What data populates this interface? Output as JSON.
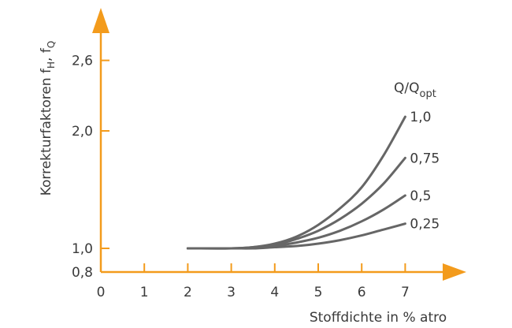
{
  "chart_data": {
    "type": "line",
    "title": "",
    "xlabel": "Stoffdichte in % atro",
    "ylabel": {
      "main": "Korrekturfaktoren f",
      "sub1": "H",
      "sep": ", f",
      "sub2": "Q"
    },
    "legend_title": {
      "main": "Q/Q",
      "sub": "opt"
    },
    "xlim": [
      0,
      7.4
    ],
    "ylim": [
      0.8,
      2.7
    ],
    "x_ticks": [
      "0",
      "1",
      "2",
      "3",
      "4",
      "5",
      "6",
      "7"
    ],
    "y_ticks": [
      {
        "value": 0.8,
        "label": "0,8"
      },
      {
        "value": 1.0,
        "label": "1,0"
      },
      {
        "value": 2.0,
        "label": "2,0"
      },
      {
        "value": 2.6,
        "label": "2,6"
      }
    ],
    "grid": false,
    "colors": {
      "axis": "#f39b1c",
      "curve": "#666666",
      "text": "#3a3a3a"
    },
    "series": [
      {
        "name": "1,0",
        "x": [
          2,
          3,
          3.5,
          4,
          4.5,
          5,
          5.5,
          6,
          6.5,
          7
        ],
        "y": [
          1.0,
          1.0,
          1.01,
          1.04,
          1.1,
          1.2,
          1.34,
          1.52,
          1.79,
          2.12
        ]
      },
      {
        "name": "0,75",
        "x": [
          2,
          3,
          3.5,
          4,
          4.5,
          5,
          5.5,
          6,
          6.5,
          7
        ],
        "y": [
          1.0,
          1.0,
          1.01,
          1.03,
          1.08,
          1.15,
          1.25,
          1.38,
          1.55,
          1.77
        ]
      },
      {
        "name": "0,5",
        "x": [
          2,
          3,
          3.5,
          4,
          4.5,
          5,
          5.5,
          6,
          6.5,
          7
        ],
        "y": [
          1.0,
          1.0,
          1.005,
          1.02,
          1.05,
          1.09,
          1.15,
          1.23,
          1.33,
          1.45
        ]
      },
      {
        "name": "0,25",
        "x": [
          2,
          3,
          3.5,
          4,
          4.5,
          5,
          5.5,
          6,
          6.5,
          7
        ],
        "y": [
          1.0,
          1.0,
          1.0,
          1.01,
          1.02,
          1.04,
          1.07,
          1.11,
          1.16,
          1.21
        ]
      }
    ]
  }
}
